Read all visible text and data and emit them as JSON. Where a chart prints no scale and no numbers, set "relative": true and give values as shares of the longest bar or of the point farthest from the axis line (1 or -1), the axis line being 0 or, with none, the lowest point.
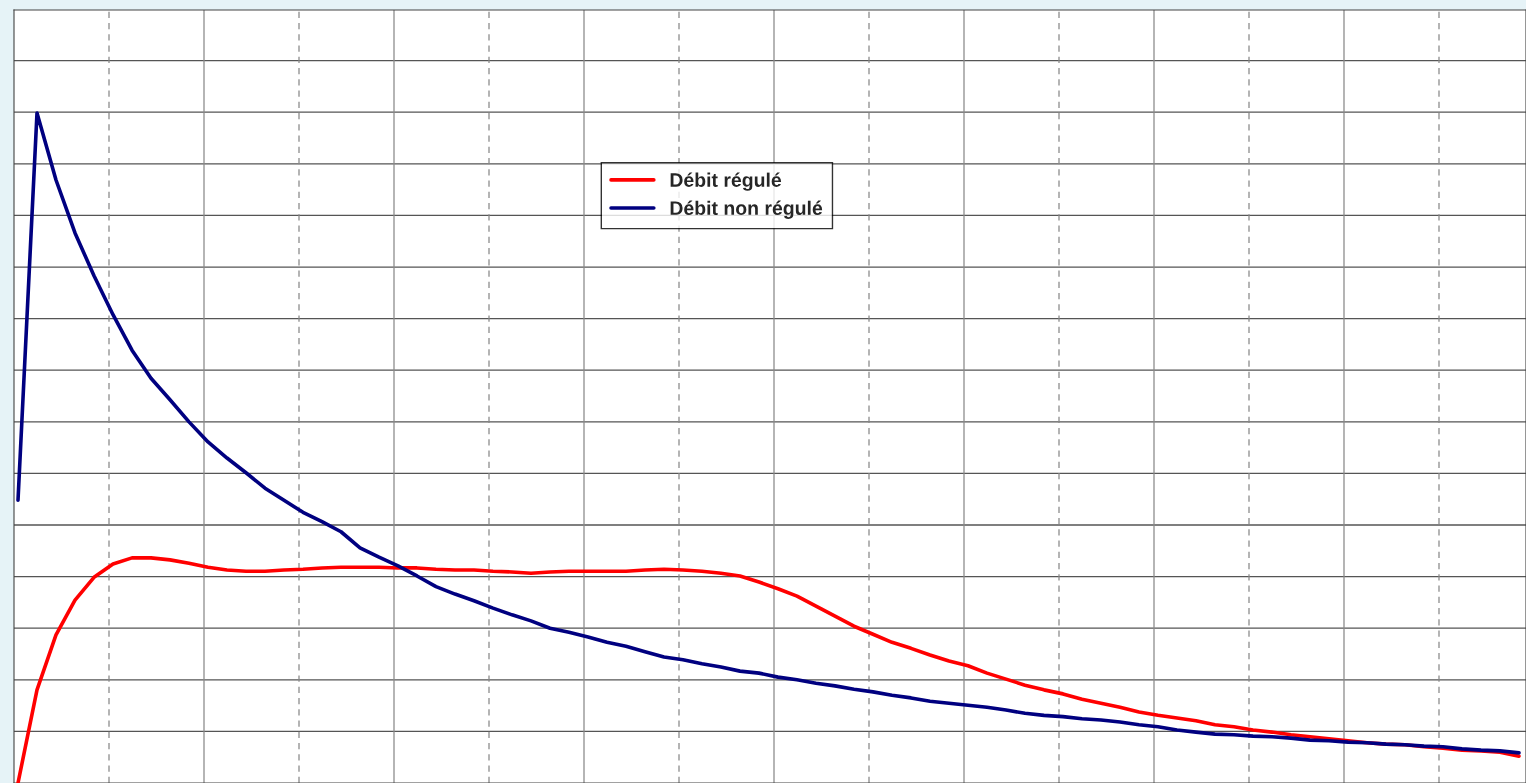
{
  "chart_data": {
    "type": "line",
    "relative": true,
    "grid": true,
    "legend": "top",
    "categories": [
      null,
      null,
      null,
      null,
      null,
      null,
      null,
      null,
      null,
      null,
      null,
      null,
      null,
      null,
      null,
      null,
      null,
      null,
      null,
      null,
      null,
      null,
      null,
      null,
      null,
      null,
      null,
      null,
      null,
      null,
      null,
      null,
      null,
      null,
      null,
      null,
      null,
      null,
      null,
      null,
      null,
      null,
      null,
      null,
      null,
      null,
      null,
      null,
      null,
      null,
      null,
      null,
      null,
      null,
      null,
      null,
      null,
      null,
      null,
      null,
      null,
      null,
      null,
      null,
      null,
      null,
      null,
      null,
      null,
      null,
      null,
      null,
      null,
      null,
      null,
      null,
      null,
      null,
      null,
      null
    ],
    "series": [
      {
        "name": "Débit régulé",
        "color": "#ff0000",
        "values": [
          0,
          0.139,
          0.221,
          0.273,
          0.307,
          0.327,
          0.336,
          0.336,
          0.333,
          0.328,
          0.322,
          0.318,
          0.316,
          0.316,
          0.318,
          0.319,
          0.321,
          0.322,
          0.322,
          0.322,
          0.321,
          0.321,
          0.319,
          0.318,
          0.318,
          0.316,
          0.315,
          0.313,
          0.315,
          0.316,
          0.316,
          0.316,
          0.316,
          0.318,
          0.319,
          0.318,
          0.316,
          0.313,
          0.309,
          0.3,
          0.29,
          0.279,
          0.264,
          0.249,
          0.234,
          0.222,
          0.21,
          0.201,
          0.191,
          0.182,
          0.175,
          0.164,
          0.155,
          0.146,
          0.139,
          0.133,
          0.125,
          0.119,
          0.113,
          0.106,
          0.101,
          0.097,
          0.093,
          0.087,
          0.084,
          0.079,
          0.076,
          0.072,
          0.069,
          0.066,
          0.063,
          0.06,
          0.058,
          0.057,
          0.054,
          0.052,
          0.049,
          0.048,
          0.046,
          0.04
        ]
      },
      {
        "name": "Débit non régulé",
        "color": "#000080",
        "values": [
          0.422,
          1.0,
          0.9,
          0.821,
          0.757,
          0.699,
          0.646,
          0.604,
          0.572,
          0.539,
          0.509,
          0.485,
          0.463,
          0.44,
          0.422,
          0.404,
          0.39,
          0.375,
          0.351,
          0.337,
          0.324,
          0.309,
          0.293,
          0.282,
          0.272,
          0.261,
          0.251,
          0.242,
          0.231,
          0.225,
          0.218,
          0.21,
          0.204,
          0.196,
          0.188,
          0.184,
          0.178,
          0.173,
          0.167,
          0.164,
          0.158,
          0.154,
          0.149,
          0.145,
          0.14,
          0.136,
          0.131,
          0.127,
          0.122,
          0.119,
          0.116,
          0.113,
          0.109,
          0.104,
          0.101,
          0.099,
          0.096,
          0.094,
          0.091,
          0.087,
          0.084,
          0.079,
          0.076,
          0.073,
          0.072,
          0.07,
          0.069,
          0.067,
          0.064,
          0.063,
          0.061,
          0.06,
          0.058,
          0.057,
          0.055,
          0.054,
          0.051,
          0.049,
          0.048,
          0.045
        ]
      }
    ]
  }
}
